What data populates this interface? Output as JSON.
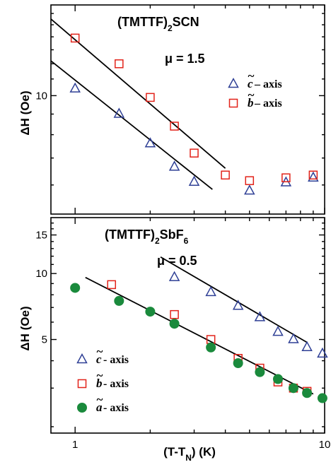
{
  "colors": {
    "c_axis": "#2e3f95",
    "b_axis": "#e2231a",
    "a_axis": "#1a8a3c",
    "fit_line": "#000000",
    "frame": "#000000"
  },
  "x_axis": {
    "label_main": "(T-T",
    "label_sub": "N",
    "label_tail": ") (K)",
    "ticks": [
      {
        "value": 1,
        "label": "1"
      },
      {
        "value": 10,
        "label": "10"
      }
    ]
  },
  "chart_data": [
    {
      "type": "scatter",
      "title_main": "(TMTTF)",
      "title_sub": "2",
      "title_tail": "SCN",
      "param_text": "μ = 1.5",
      "ylabel": "ΔH (Oe)",
      "xscale": "log",
      "yscale": "log",
      "xlim": [
        0.8,
        10
      ],
      "ylim": [
        5.08,
        16.8
      ],
      "y_ticks": [
        {
          "value": 10,
          "label": "10"
        }
      ],
      "legend": {
        "position": "right-middle",
        "entries": [
          {
            "letter": "c",
            "text": " – axis",
            "marker": "triangle-open",
            "series": "c_axis"
          },
          {
            "letter": "b",
            "text": " – axis",
            "marker": "square-open",
            "series": "b_axis"
          }
        ]
      },
      "series": [
        {
          "name": "c – axis",
          "key": "c_axis",
          "marker": "triangle-open",
          "points": [
            [
              1.0,
              10.4
            ],
            [
              1.5,
              9.0
            ],
            [
              2.0,
              7.6
            ],
            [
              2.5,
              6.65
            ],
            [
              3.0,
              6.1
            ],
            [
              5.0,
              5.8
            ],
            [
              7.0,
              6.08
            ],
            [
              9.0,
              6.25
            ]
          ]
        },
        {
          "name": "b – axis",
          "key": "b_axis",
          "marker": "square-open",
          "points": [
            [
              1.0,
              13.9
            ],
            [
              1.5,
              12.0
            ],
            [
              2.0,
              9.9
            ],
            [
              2.5,
              8.4
            ],
            [
              3.0,
              7.2
            ],
            [
              4.0,
              6.35
            ],
            [
              5.0,
              6.15
            ],
            [
              7.0,
              6.25
            ],
            [
              9.0,
              6.35
            ]
          ]
        }
      ],
      "fit_lines": [
        {
          "x": [
            0.8,
            4.0
          ],
          "y": [
            15.5,
            6.6
          ]
        },
        {
          "x": [
            0.8,
            3.55
          ],
          "y": [
            12.2,
            5.85
          ]
        }
      ]
    },
    {
      "type": "scatter",
      "title_main": "(TMTTF)",
      "title_sub": "2",
      "title_tail": "SbF",
      "title_sub2": "6",
      "param_text": "μ = 0.5",
      "ylabel": "ΔH (Oe)",
      "xscale": "log",
      "yscale": "log",
      "xlim": [
        0.8,
        10
      ],
      "ylim": [
        1.87,
        18.0
      ],
      "y_ticks": [
        {
          "value": 5,
          "label": "5"
        },
        {
          "value": 10,
          "label": "10"
        },
        {
          "value": 15,
          "label": "15"
        }
      ],
      "legend": {
        "position": "bottom-left",
        "entries": [
          {
            "letter": "c",
            "text": " - axis",
            "marker": "triangle-open",
            "series": "c_axis"
          },
          {
            "letter": "b",
            "text": " - axis",
            "marker": "square-open",
            "series": "b_axis"
          },
          {
            "letter": "a",
            "text": " - axis",
            "marker": "circle-filled",
            "series": "a_axis"
          }
        ]
      },
      "series": [
        {
          "name": "c - axis",
          "key": "c_axis",
          "marker": "triangle-open",
          "points": [
            [
              2.5,
              9.6
            ],
            [
              3.5,
              8.2
            ],
            [
              4.5,
              7.1
            ],
            [
              5.5,
              6.3
            ],
            [
              6.5,
              5.4
            ],
            [
              7.5,
              5.0
            ],
            [
              8.5,
              4.6
            ],
            [
              9.8,
              4.3
            ]
          ]
        },
        {
          "name": "b - axis",
          "key": "b_axis",
          "marker": "square-open",
          "points": [
            [
              1.4,
              8.9
            ],
            [
              2.5,
              6.5
            ],
            [
              3.5,
              5.0
            ],
            [
              4.5,
              4.1
            ],
            [
              5.5,
              3.7
            ],
            [
              6.5,
              3.2
            ],
            [
              7.5,
              3.0
            ],
            [
              8.5,
              2.9
            ]
          ]
        },
        {
          "name": "a - axis",
          "key": "a_axis",
          "marker": "circle-filled",
          "points": [
            [
              1.0,
              8.6
            ],
            [
              1.5,
              7.5
            ],
            [
              2.0,
              6.7
            ],
            [
              2.5,
              5.9
            ],
            [
              3.5,
              4.6
            ],
            [
              4.5,
              3.9
            ],
            [
              5.5,
              3.55
            ],
            [
              6.5,
              3.3
            ],
            [
              7.5,
              3.0
            ],
            [
              8.5,
              2.85
            ],
            [
              9.8,
              2.7
            ]
          ]
        }
      ],
      "fit_lines": [
        {
          "x": [
            2.2,
            8.5
          ],
          "y": [
            11.9,
            4.85
          ]
        },
        {
          "x": [
            1.1,
            9.0
          ],
          "y": [
            9.6,
            2.82
          ]
        }
      ]
    }
  ]
}
